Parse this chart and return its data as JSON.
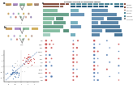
{
  "figure_bg": "#ffffff",
  "left_panel_bg": "#f0f0f0",
  "right_panel_bg": "#ffffff",
  "panel_split": 0.3,
  "top_bar1_color": "#7b3f2e",
  "top_bar2_color": "#8b6050",
  "top_bar3_color": "#3a7a8c",
  "top_bar4_color": "#2a5a7a",
  "green_block_colors": [
    "#7ab89a",
    "#5a9880",
    "#4a8870",
    "#3a7860",
    "#9acaba",
    "#6aaaba"
  ],
  "blue_block_colors": [
    "#5a8ab0",
    "#4a7aa0",
    "#3a6a90",
    "#6a9ac0"
  ],
  "scatter_red": "#c03030",
  "scatter_blue": "#3060a0",
  "scatter_gray": "#909090",
  "dot_red": "#c03030",
  "dot_blue": "#3060a0",
  "icon_colors_a": [
    "#c8a060",
    "#b090c8",
    "#90c0a0",
    "#d0b060",
    "#b09080",
    "#a0c0d8",
    "#c07060",
    "#80b090",
    "#d0a090",
    "#9080b0"
  ],
  "icon_colors_b": [
    "#c8a060",
    "#b090c8",
    "#90c0a0",
    "#d0b060",
    "#b09080",
    "#a0c0d8",
    "#c07060",
    "#80b090"
  ],
  "arrow_color": "#555555"
}
